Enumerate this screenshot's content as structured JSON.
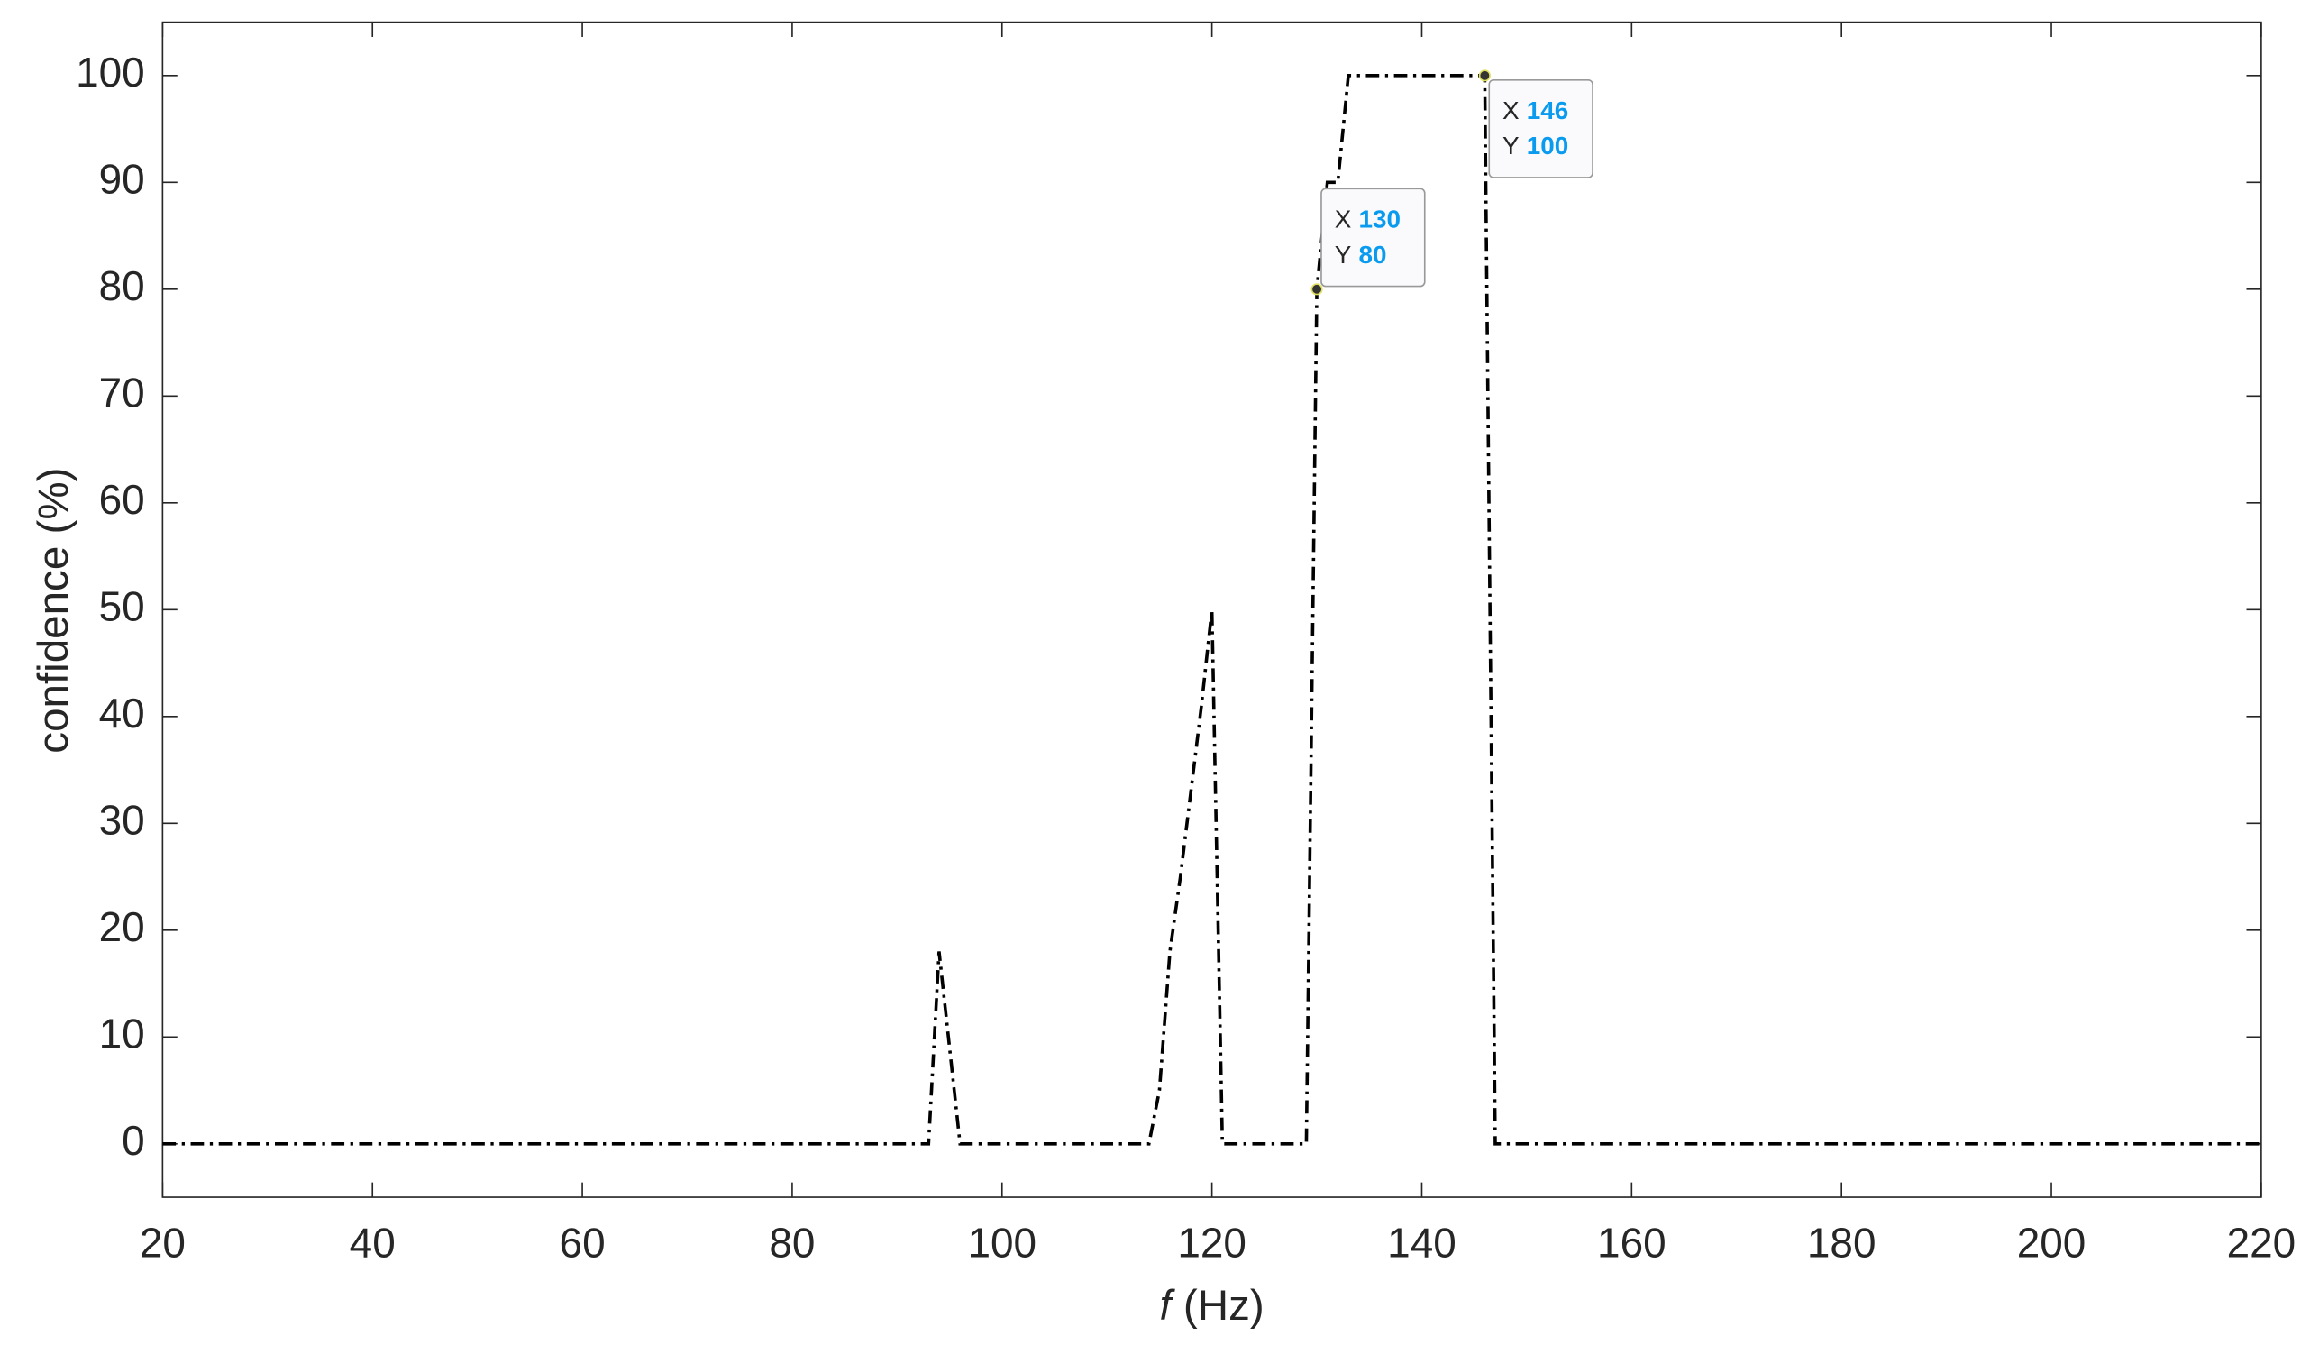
{
  "chart_data": {
    "type": "line",
    "xlabel_symbol": "f",
    "xlabel_unit": "(Hz)",
    "ylabel": "confidence (%)",
    "x": [
      20,
      93,
      94,
      96,
      114,
      115,
      116,
      117,
      118,
      119,
      120,
      121,
      129,
      130,
      131,
      132,
      133,
      146,
      147,
      220
    ],
    "values": [
      0,
      0,
      18,
      0,
      0,
      5,
      18,
      25,
      33,
      41,
      50,
      0,
      0,
      80,
      90,
      90,
      100,
      100,
      0,
      0
    ],
    "color": "#000000",
    "xlim": [
      20,
      220
    ],
    "xticks": [
      20,
      40,
      60,
      80,
      100,
      120,
      140,
      160,
      180,
      200,
      220
    ],
    "ylim": [
      -5,
      105
    ],
    "yticks": [
      0,
      10,
      20,
      30,
      40,
      50,
      60,
      70,
      80,
      90,
      100
    ],
    "grid": false,
    "datatips": [
      {
        "x_label": "X",
        "x": 130,
        "y_label": "Y",
        "y": 80
      },
      {
        "x_label": "X",
        "x": 146,
        "y_label": "Y",
        "y": 100
      }
    ]
  }
}
